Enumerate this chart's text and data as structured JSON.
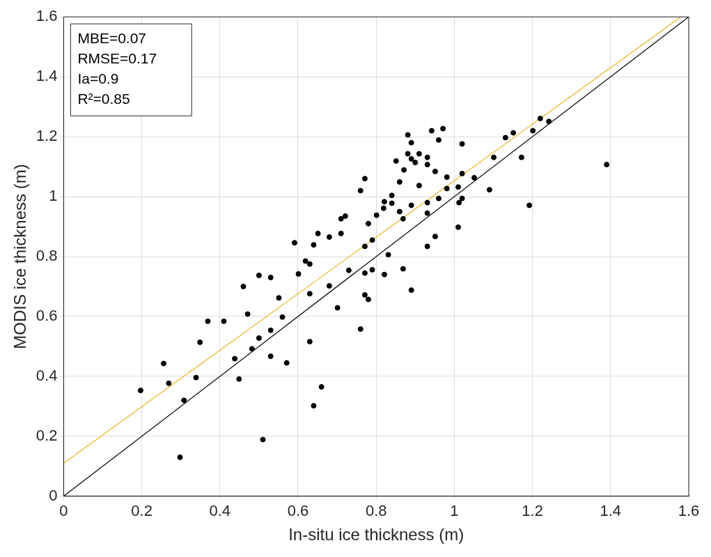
{
  "chart_data": {
    "type": "scatter",
    "xlabel": "In-situ ice thickness (m)",
    "ylabel": "MODIS ice thickness (m)",
    "annotations": [
      "MBE=0.07",
      "RMSE=0.17",
      "Ia=0.9",
      "R²=0.85"
    ],
    "xlim": [
      0,
      1.6
    ],
    "xticks": [
      0,
      0.2,
      0.4,
      0.6,
      0.8,
      1,
      1.2,
      1.4,
      1.6
    ],
    "ylim": [
      0,
      1.6
    ],
    "yticks": [
      0,
      0.2,
      0.4,
      0.6,
      0.8,
      1,
      1.2,
      1.4,
      1.6
    ],
    "grid": true,
    "legend": false,
    "marker": "circle",
    "line_style": "solid",
    "series": [
      {
        "color": "#000000",
        "x": [
          0.197,
          0.256,
          0.269,
          0.308,
          0.298,
          0.339,
          0.349,
          0.369,
          0.41,
          0.438,
          0.449,
          0.46,
          0.471,
          0.482,
          0.5,
          0.5,
          0.53,
          0.53,
          0.53,
          0.51,
          0.551,
          0.56,
          0.571,
          0.591,
          0.601,
          0.619,
          0.63,
          0.63,
          0.63,
          0.64,
          0.651,
          0.64,
          0.66,
          0.68,
          0.68,
          0.701,
          0.71,
          0.71,
          0.721,
          0.73,
          0.76,
          0.76,
          0.771,
          0.771,
          0.771,
          0.771,
          0.78,
          0.78,
          0.79,
          0.79,
          0.801,
          0.819,
          0.821,
          0.821,
          0.831,
          0.84,
          0.84,
          0.851,
          0.86,
          0.86,
          0.869,
          0.869,
          0.871,
          0.881,
          0.881,
          0.89,
          0.89,
          0.89,
          0.89,
          0.9,
          0.91,
          0.91,
          0.931,
          0.931,
          0.931,
          0.931,
          0.931,
          0.942,
          0.951,
          0.951,
          0.96,
          0.96,
          0.971,
          0.981,
          0.981,
          1.01,
          1.01,
          1.012,
          1.02,
          1.02,
          1.02,
          1.051,
          1.09,
          1.101,
          1.131,
          1.151,
          1.172,
          1.192,
          1.201,
          1.22,
          1.242,
          1.39
        ],
        "values": [
          0.353,
          0.443,
          0.377,
          0.32,
          0.13,
          0.396,
          0.514,
          0.584,
          0.584,
          0.459,
          0.391,
          0.7,
          0.608,
          0.492,
          0.528,
          0.737,
          0.73,
          0.467,
          0.554,
          0.189,
          0.662,
          0.598,
          0.445,
          0.846,
          0.742,
          0.785,
          0.775,
          0.676,
          0.516,
          0.839,
          0.877,
          0.302,
          0.365,
          0.702,
          0.865,
          0.629,
          0.877,
          0.926,
          0.935,
          0.754,
          0.558,
          1.02,
          1.06,
          0.834,
          0.672,
          0.745,
          0.657,
          0.91,
          0.855,
          0.756,
          0.938,
          0.961,
          0.983,
          0.74,
          0.806,
          0.978,
          1.004,
          1.119,
          1.049,
          0.95,
          0.926,
          0.759,
          1.089,
          1.206,
          1.143,
          1.126,
          1.18,
          0.971,
          0.688,
          1.114,
          1.143,
          1.037,
          1.131,
          1.107,
          0.98,
          0.945,
          0.834,
          1.22,
          1.084,
          0.867,
          1.189,
          0.994,
          1.227,
          1.027,
          1.065,
          0.898,
          1.032,
          0.98,
          1.176,
          1.077,
          0.994,
          1.063,
          1.023,
          1.131,
          1.197,
          1.213,
          1.131,
          0.971,
          1.22,
          1.261,
          1.251,
          1.107
        ]
      },
      {
        "type": "line",
        "marker": "none",
        "color": "#000000",
        "x": [
          0,
          1.6
        ],
        "values": [
          0,
          1.6
        ]
      },
      {
        "type": "line",
        "marker": "none",
        "color": "#edb120",
        "x": [
          0,
          1.58
        ],
        "values": [
          0.11,
          1.6
        ]
      }
    ]
  }
}
